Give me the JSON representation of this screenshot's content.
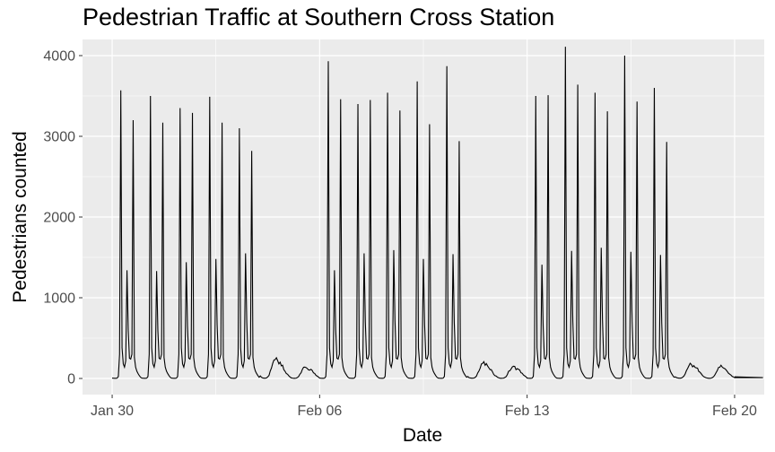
{
  "chart_data": {
    "type": "line",
    "title": "Pedestrian Traffic at Southern Cross Station",
    "xlabel": "Date",
    "ylabel": "Pedestrians counted",
    "x_start": "2017-01-30",
    "x_end": "2017-02-20",
    "xlim": [
      "2017-01-29",
      "2017-02-21"
    ],
    "ylim": [
      -200,
      4200
    ],
    "x_ticks": [
      {
        "date": "2017-01-30",
        "label": "Jan 30"
      },
      {
        "date": "2017-02-06",
        "label": "Feb 06"
      },
      {
        "date": "2017-02-13",
        "label": "Feb 13"
      },
      {
        "date": "2017-02-20",
        "label": "Feb 20"
      }
    ],
    "y_ticks": [
      {
        "value": 0,
        "label": "0"
      },
      {
        "value": 1000,
        "label": "1000"
      },
      {
        "value": 2000,
        "label": "2000"
      },
      {
        "value": 3000,
        "label": "3000"
      },
      {
        "value": 4000,
        "label": "4000"
      }
    ],
    "series": [
      {
        "color": "#000000",
        "daily_pattern": {
          "weekday_peaks": [
            {
              "date": "2017-01-30",
              "am_peak": 3570,
              "lunch_peak": 1340,
              "pm_peak": 3200
            },
            {
              "date": "2017-01-31",
              "am_peak": 3500,
              "lunch_peak": 1330,
              "pm_peak": 3170
            },
            {
              "date": "2017-02-01",
              "am_peak": 3350,
              "lunch_peak": 1440,
              "pm_peak": 3290
            },
            {
              "date": "2017-02-02",
              "am_peak": 3490,
              "lunch_peak": 1480,
              "pm_peak": 3170
            },
            {
              "date": "2017-02-03",
              "am_peak": 3100,
              "lunch_peak": 1550,
              "pm_peak": 2820
            },
            {
              "date": "2017-02-06",
              "am_peak": 3930,
              "lunch_peak": 1340,
              "pm_peak": 3460
            },
            {
              "date": "2017-02-07",
              "am_peak": 3400,
              "lunch_peak": 1550,
              "pm_peak": 3450
            },
            {
              "date": "2017-02-08",
              "am_peak": 3540,
              "lunch_peak": 1590,
              "pm_peak": 3320
            },
            {
              "date": "2017-02-09",
              "am_peak": 3680,
              "lunch_peak": 1480,
              "pm_peak": 3150
            },
            {
              "date": "2017-02-10",
              "am_peak": 3870,
              "lunch_peak": 1540,
              "pm_peak": 2940
            },
            {
              "date": "2017-02-13",
              "am_peak": 3500,
              "lunch_peak": 1410,
              "pm_peak": 3510
            },
            {
              "date": "2017-02-14",
              "am_peak": 4110,
              "lunch_peak": 1580,
              "pm_peak": 3640
            },
            {
              "date": "2017-02-15",
              "am_peak": 3540,
              "lunch_peak": 1620,
              "pm_peak": 3310
            },
            {
              "date": "2017-02-16",
              "am_peak": 4000,
              "lunch_peak": 1570,
              "pm_peak": 3430
            },
            {
              "date": "2017-02-17",
              "am_peak": 3600,
              "lunch_peak": 1530,
              "pm_peak": 2930
            }
          ],
          "weekend_peaks": [
            {
              "date": "2017-02-04",
              "peak": 240
            },
            {
              "date": "2017-02-05",
              "peak": 150
            },
            {
              "date": "2017-02-11",
              "peak": 190
            },
            {
              "date": "2017-02-12",
              "peak": 150
            },
            {
              "date": "2017-02-18",
              "peak": 190
            },
            {
              "date": "2017-02-19",
              "peak": 150
            }
          ]
        }
      }
    ],
    "grid": true,
    "legend": "none",
    "panel_color": "#ebebeb",
    "grid_color": "#ffffff"
  }
}
